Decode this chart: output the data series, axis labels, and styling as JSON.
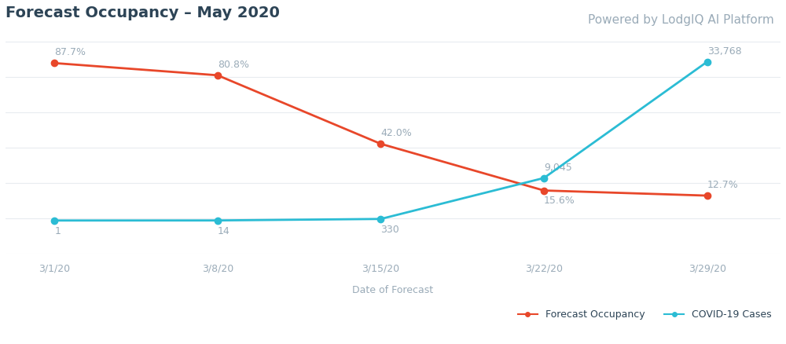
{
  "title": "Forecast Occupancy – May 2020",
  "subtitle": "Powered by LodgIQ AI Platform",
  "xlabel": "Date of Forecast",
  "legend_forecast": "Forecast Occupancy",
  "legend_covid": "COVID-19 Cases",
  "x_labels": [
    "3/1/20",
    "3/8/20",
    "3/15/20",
    "3/22/20",
    "3/29/20"
  ],
  "x_values": [
    0,
    1,
    2,
    3,
    4
  ],
  "occupancy_values": [
    87.7,
    80.8,
    42.0,
    15.6,
    12.7
  ],
  "occupancy_labels": [
    "87.7%",
    "80.8%",
    "42.0%",
    "15.6%",
    "12.7%"
  ],
  "covid_values": [
    1,
    14,
    330,
    9045,
    33768
  ],
  "covid_labels": [
    "1",
    "14",
    "330",
    "9,045",
    "33,768"
  ],
  "occupancy_color": "#E8472A",
  "covid_color": "#2BBCD4",
  "annotation_color": "#9AABB8",
  "background_color": "#FFFFFF",
  "grid_color": "#E8ECF0",
  "title_color": "#2D4456",
  "subtitle_color": "#9AABB8",
  "xlabel_color": "#9AABB8",
  "title_fontsize": 14,
  "subtitle_fontsize": 11,
  "label_fontsize": 9,
  "annotation_fontsize": 9,
  "legend_fontsize": 9,
  "marker_size": 6,
  "line_width": 2.0,
  "occ_ylim": [
    -20,
    105
  ],
  "cov_ylim": [
    -7000,
    40000
  ],
  "occ_label_va": [
    "bottom",
    "bottom",
    "bottom",
    "top",
    "bottom"
  ],
  "occ_label_yoffset": [
    5,
    5,
    5,
    -5,
    5
  ],
  "cov_label_va": [
    "top",
    "top",
    "top",
    "bottom",
    "bottom"
  ],
  "cov_label_yoffset": [
    -5,
    -5,
    -5,
    5,
    5
  ]
}
